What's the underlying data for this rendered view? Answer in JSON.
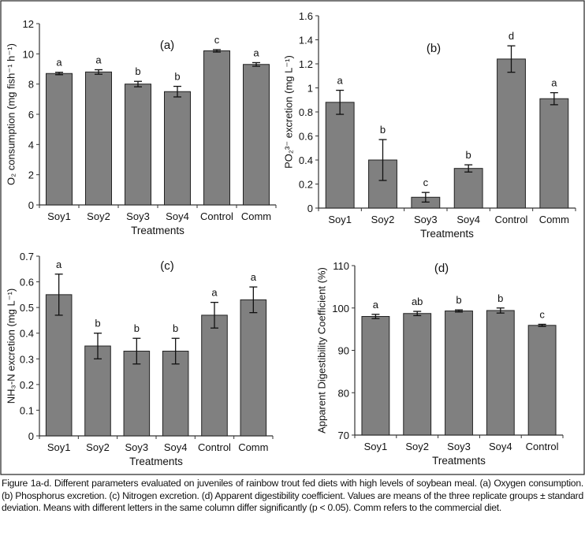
{
  "chart_data": [
    {
      "type": "bar",
      "panel_label": "(a)",
      "categories": [
        "Soy1",
        "Soy2",
        "Soy3",
        "Soy4",
        "Control",
        "Comm"
      ],
      "values": [
        8.7,
        8.8,
        8.0,
        7.5,
        10.2,
        9.3
      ],
      "errors": [
        0.08,
        0.15,
        0.18,
        0.35,
        0.08,
        0.12
      ],
      "letters": [
        "a",
        "a",
        "b",
        "b",
        "c",
        "a"
      ],
      "xlabel": "Treatments",
      "ylabel": "O₂ consumption (mg fish⁻¹ h⁻¹)",
      "ylim": [
        0,
        12
      ],
      "yticks": [
        0,
        2,
        4,
        6,
        8,
        10,
        12
      ],
      "ytick_labels": [
        "0",
        "2",
        "4",
        "6",
        "8",
        "10",
        "12"
      ],
      "bar_color": "#808080"
    },
    {
      "type": "bar",
      "panel_label": "(b)",
      "categories": [
        "Soy1",
        "Soy2",
        "Soy3",
        "Soy4",
        "Control",
        "Comm"
      ],
      "values": [
        0.88,
        0.4,
        0.09,
        0.33,
        1.24,
        0.91
      ],
      "errors": [
        0.1,
        0.17,
        0.04,
        0.03,
        0.11,
        0.05
      ],
      "letters": [
        "a",
        "b",
        "c",
        "b",
        "d",
        "a"
      ],
      "xlabel": "Treatments",
      "ylabel": "PO₂³⁻ excretion (mg L⁻¹)",
      "ylim": [
        0,
        1.6
      ],
      "yticks": [
        0,
        0.2,
        0.4,
        0.6,
        0.8,
        1,
        1.2,
        1.4,
        1.6
      ],
      "ytick_labels": [
        "0",
        "0.2",
        "0.4",
        "0.6",
        "0.8",
        "1",
        "1.2",
        "1.4",
        "1.6"
      ],
      "bar_color": "#808080"
    },
    {
      "type": "bar",
      "panel_label": "(c)",
      "categories": [
        "Soy1",
        "Soy2",
        "Soy3",
        "Soy4",
        "Control",
        "Comm"
      ],
      "values": [
        0.55,
        0.35,
        0.33,
        0.33,
        0.47,
        0.53
      ],
      "errors": [
        0.08,
        0.05,
        0.05,
        0.05,
        0.05,
        0.05
      ],
      "letters": [
        "a",
        "b",
        "b",
        "b",
        "a",
        "a"
      ],
      "xlabel": "Treatments",
      "ylabel": "NH₃-N excretion (mg L⁻¹)",
      "ylim": [
        0,
        0.7
      ],
      "yticks": [
        0,
        0.1,
        0.2,
        0.3,
        0.4,
        0.5,
        0.6,
        0.7
      ],
      "ytick_labels": [
        "0",
        "0.1",
        "0.2",
        "0.3",
        "0.4",
        "0.5",
        "0.6",
        "0.7"
      ],
      "bar_color": "#808080"
    },
    {
      "type": "bar",
      "panel_label": "(d)",
      "categories": [
        "Soy1",
        "Soy2",
        "Soy3",
        "Soy4",
        "Control"
      ],
      "values": [
        98.0,
        98.7,
        99.3,
        99.4,
        95.9
      ],
      "errors": [
        0.5,
        0.5,
        0.25,
        0.6,
        0.25
      ],
      "letters": [
        "a",
        "ab",
        "b",
        "b",
        "c"
      ],
      "xlabel": "Treatments",
      "ylabel": "Apparent Digestibility Coefficient (%)",
      "ylim": [
        70,
        110
      ],
      "yticks": [
        70,
        80,
        90,
        100,
        110
      ],
      "ytick_labels": [
        "70",
        "80",
        "90",
        "100",
        "110"
      ],
      "bar_color": "#808080"
    }
  ],
  "caption": "Figure 1a-d. Different parameters evaluated on juveniles of rainbow trout fed diets with high levels of soybean meal. (a) Oxygen consumption. (b) Phosphorus excretion. (c) Nitrogen excretion. (d) Apparent digestibility coefficient. Values are means of the three replicate groups ± standard deviation. Means with different letters in the same column differ significantly (p < 0.05). Comm refers to the commercial diet."
}
